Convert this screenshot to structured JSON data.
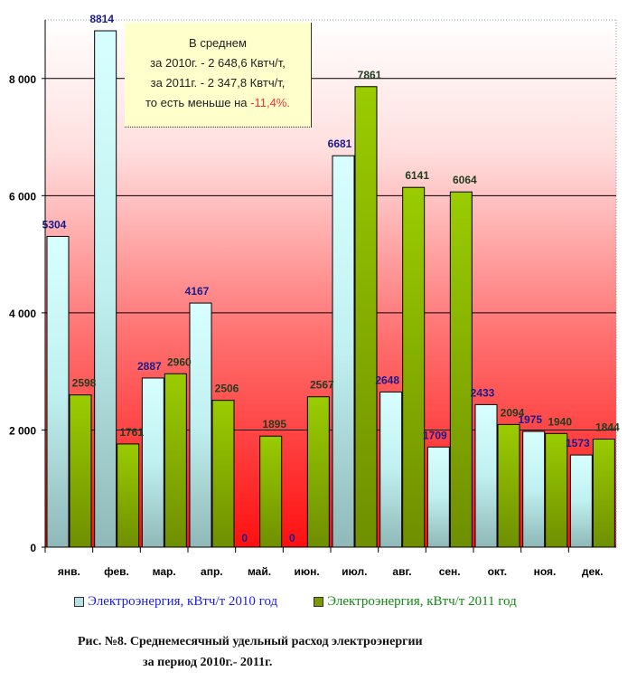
{
  "chart_data": {
    "type": "bar",
    "categories": [
      "янв.",
      "фев.",
      "мар.",
      "апр.",
      "май.",
      "июн.",
      "июл.",
      "авг.",
      "сен.",
      "окт.",
      "ноя.",
      "дек."
    ],
    "series": [
      {
        "name": "Электроэнергия, кВтч/т 2010 год",
        "values": [
          5304,
          8814,
          2887,
          4167,
          0,
          0,
          6681,
          2648,
          1709,
          2433,
          1975,
          1573
        ],
        "color": "#ccffff",
        "label_color": "#1a1a8c"
      },
      {
        "name": "Электроэнергия, кВтч/т 2011 год",
        "values": [
          2598,
          1761,
          2960,
          2506,
          1895,
          2567,
          7861,
          6141,
          6064,
          2094,
          1940,
          1844
        ],
        "color": "#99cc00",
        "label_color": "#1f3d1f"
      }
    ],
    "yticks": [
      "0",
      "2 000",
      "4 000",
      "6 000",
      "8 000"
    ],
    "ytick_values": [
      0,
      2000,
      4000,
      6000,
      8000
    ],
    "ylim": [
      0,
      9000
    ],
    "grid": true,
    "legend_position": "bottom"
  },
  "note": {
    "line1": "В среднем",
    "line2": "за  2010г. - 2 648,6 Квтч/т,",
    "line3": "за 2011г. - 2 347,8 Квтч/т,",
    "line4_prefix": "то есть меньше на ",
    "line4_value": "-11,4%."
  },
  "legend": {
    "item2010": "Электроэнергия, кВтч/т 2010 год",
    "item2011": "Электроэнергия, кВтч/т 2011 год"
  },
  "caption": {
    "line1": "Рис. №8. Среднемесячный удельный расход электроэнергии",
    "line2": "за период 2010г.- 2011г."
  }
}
